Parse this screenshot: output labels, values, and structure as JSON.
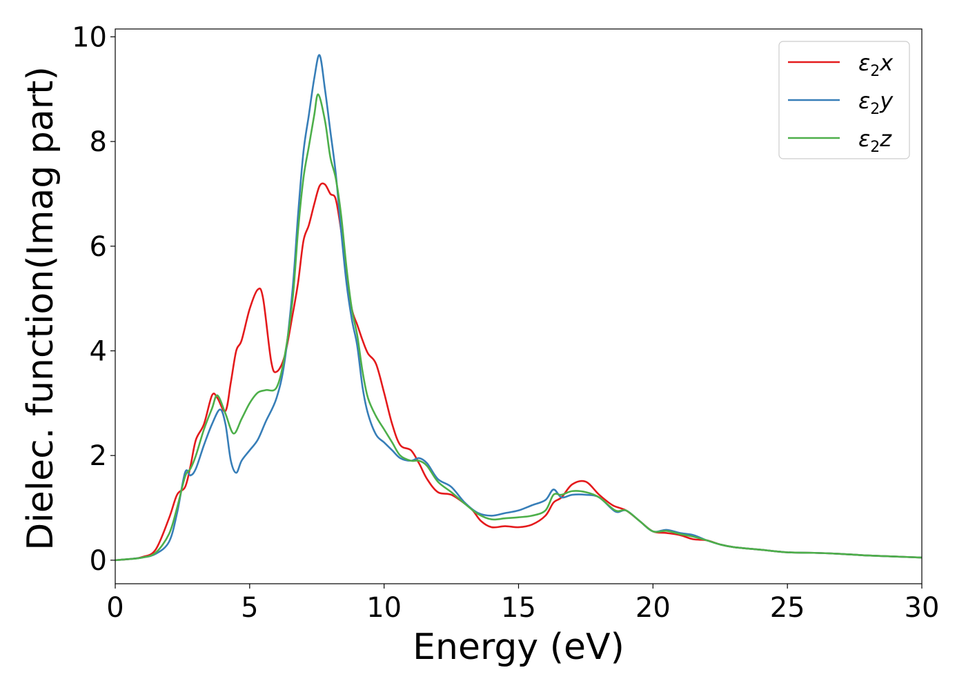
{
  "chart_data": {
    "type": "line",
    "xlabel": "Energy (eV)",
    "ylabel": "Dielec. function(Imag part)",
    "xlim": [
      0,
      30
    ],
    "ylim": [
      -0.45,
      10.15
    ],
    "xticks": [
      0,
      5,
      10,
      15,
      20,
      25,
      30
    ],
    "yticks": [
      0,
      2,
      4,
      6,
      8,
      10
    ],
    "grid": false,
    "legend_position": "top-right",
    "series": [
      {
        "name": "ε2x",
        "legend": {
          "base": "ε",
          "sub": "2",
          "suffix": "x"
        },
        "color": "#e41a1c",
        "points": [
          [
            0,
            0
          ],
          [
            0.5,
            0.02
          ],
          [
            1,
            0.06
          ],
          [
            1.5,
            0.2
          ],
          [
            2,
            0.8
          ],
          [
            2.3,
            1.25
          ],
          [
            2.6,
            1.4
          ],
          [
            2.8,
            1.8
          ],
          [
            3,
            2.3
          ],
          [
            3.3,
            2.6
          ],
          [
            3.6,
            3.15
          ],
          [
            3.8,
            3.1
          ],
          [
            4.1,
            2.85
          ],
          [
            4.3,
            3.4
          ],
          [
            4.5,
            4.0
          ],
          [
            4.7,
            4.2
          ],
          [
            5,
            4.8
          ],
          [
            5.3,
            5.17
          ],
          [
            5.5,
            5.0
          ],
          [
            5.8,
            3.8
          ],
          [
            6,
            3.6
          ],
          [
            6.3,
            3.9
          ],
          [
            6.6,
            4.7
          ],
          [
            6.8,
            5.3
          ],
          [
            7,
            6.1
          ],
          [
            7.2,
            6.4
          ],
          [
            7.4,
            6.8
          ],
          [
            7.6,
            7.15
          ],
          [
            7.8,
            7.18
          ],
          [
            8,
            7.0
          ],
          [
            8.2,
            6.9
          ],
          [
            8.4,
            6.3
          ],
          [
            8.6,
            5.5
          ],
          [
            8.8,
            4.8
          ],
          [
            9,
            4.5
          ],
          [
            9.2,
            4.2
          ],
          [
            9.4,
            3.95
          ],
          [
            9.7,
            3.75
          ],
          [
            10,
            3.2
          ],
          [
            10.3,
            2.6
          ],
          [
            10.6,
            2.2
          ],
          [
            11,
            2.1
          ],
          [
            11.3,
            1.85
          ],
          [
            11.6,
            1.55
          ],
          [
            12,
            1.3
          ],
          [
            12.5,
            1.25
          ],
          [
            13,
            1.08
          ],
          [
            13.3,
            0.95
          ],
          [
            13.6,
            0.75
          ],
          [
            14,
            0.63
          ],
          [
            14.5,
            0.65
          ],
          [
            15,
            0.63
          ],
          [
            15.5,
            0.68
          ],
          [
            16,
            0.85
          ],
          [
            16.3,
            1.1
          ],
          [
            16.6,
            1.2
          ],
          [
            17,
            1.45
          ],
          [
            17.5,
            1.5
          ],
          [
            18,
            1.25
          ],
          [
            18.5,
            1.05
          ],
          [
            19,
            0.95
          ],
          [
            19.5,
            0.75
          ],
          [
            20,
            0.55
          ],
          [
            20.5,
            0.52
          ],
          [
            21,
            0.48
          ],
          [
            21.5,
            0.4
          ],
          [
            22,
            0.38
          ],
          [
            22.5,
            0.3
          ],
          [
            23,
            0.25
          ],
          [
            24,
            0.2
          ],
          [
            25,
            0.15
          ],
          [
            26,
            0.14
          ],
          [
            27,
            0.12
          ],
          [
            28,
            0.09
          ],
          [
            29,
            0.07
          ],
          [
            30,
            0.05
          ]
        ]
      },
      {
        "name": "ε2y",
        "legend": {
          "base": "ε",
          "sub": "2",
          "suffix": "y"
        },
        "color": "#377eb8",
        "points": [
          [
            0,
            0
          ],
          [
            0.5,
            0.02
          ],
          [
            1,
            0.05
          ],
          [
            1.5,
            0.12
          ],
          [
            2,
            0.35
          ],
          [
            2.3,
            0.9
          ],
          [
            2.6,
            1.68
          ],
          [
            2.8,
            1.62
          ],
          [
            3,
            1.75
          ],
          [
            3.3,
            2.2
          ],
          [
            3.6,
            2.6
          ],
          [
            3.9,
            2.88
          ],
          [
            4.1,
            2.6
          ],
          [
            4.3,
            1.9
          ],
          [
            4.5,
            1.67
          ],
          [
            4.7,
            1.9
          ],
          [
            5,
            2.1
          ],
          [
            5.3,
            2.3
          ],
          [
            5.6,
            2.65
          ],
          [
            6,
            3.1
          ],
          [
            6.3,
            3.8
          ],
          [
            6.6,
            5.2
          ],
          [
            6.8,
            6.6
          ],
          [
            7,
            7.8
          ],
          [
            7.2,
            8.5
          ],
          [
            7.4,
            9.2
          ],
          [
            7.6,
            9.65
          ],
          [
            7.8,
            9.0
          ],
          [
            8,
            8.2
          ],
          [
            8.2,
            7.4
          ],
          [
            8.4,
            6.3
          ],
          [
            8.6,
            5.3
          ],
          [
            8.8,
            4.6
          ],
          [
            9,
            4.1
          ],
          [
            9.2,
            3.3
          ],
          [
            9.4,
            2.8
          ],
          [
            9.7,
            2.4
          ],
          [
            10,
            2.25
          ],
          [
            10.3,
            2.1
          ],
          [
            10.6,
            1.95
          ],
          [
            11,
            1.9
          ],
          [
            11.3,
            1.95
          ],
          [
            11.6,
            1.85
          ],
          [
            12,
            1.55
          ],
          [
            12.5,
            1.4
          ],
          [
            13,
            1.1
          ],
          [
            13.5,
            0.9
          ],
          [
            14,
            0.85
          ],
          [
            14.5,
            0.9
          ],
          [
            15,
            0.95
          ],
          [
            15.5,
            1.05
          ],
          [
            16,
            1.15
          ],
          [
            16.3,
            1.35
          ],
          [
            16.6,
            1.2
          ],
          [
            17,
            1.25
          ],
          [
            17.5,
            1.25
          ],
          [
            18,
            1.2
          ],
          [
            18.6,
            0.93
          ],
          [
            19,
            0.95
          ],
          [
            19.5,
            0.75
          ],
          [
            20,
            0.55
          ],
          [
            20.5,
            0.58
          ],
          [
            21,
            0.52
          ],
          [
            21.5,
            0.48
          ],
          [
            22,
            0.38
          ],
          [
            22.5,
            0.3
          ],
          [
            23,
            0.25
          ],
          [
            24,
            0.2
          ],
          [
            25,
            0.15
          ],
          [
            26,
            0.14
          ],
          [
            27,
            0.12
          ],
          [
            28,
            0.09
          ],
          [
            29,
            0.07
          ],
          [
            30,
            0.05
          ]
        ]
      },
      {
        "name": "ε2z",
        "legend": {
          "base": "ε",
          "sub": "2",
          "suffix": "z"
        },
        "color": "#4daf4a",
        "points": [
          [
            0,
            0
          ],
          [
            0.5,
            0.02
          ],
          [
            1,
            0.05
          ],
          [
            1.5,
            0.14
          ],
          [
            2,
            0.5
          ],
          [
            2.3,
            1.0
          ],
          [
            2.6,
            1.6
          ],
          [
            2.8,
            1.75
          ],
          [
            3,
            2.0
          ],
          [
            3.3,
            2.5
          ],
          [
            3.6,
            2.9
          ],
          [
            3.8,
            3.15
          ],
          [
            4.1,
            2.8
          ],
          [
            4.4,
            2.42
          ],
          [
            4.7,
            2.7
          ],
          [
            5,
            3.0
          ],
          [
            5.3,
            3.2
          ],
          [
            5.6,
            3.25
          ],
          [
            6,
            3.3
          ],
          [
            6.3,
            3.9
          ],
          [
            6.6,
            5.0
          ],
          [
            6.8,
            6.3
          ],
          [
            7,
            7.3
          ],
          [
            7.2,
            7.9
          ],
          [
            7.4,
            8.5
          ],
          [
            7.55,
            8.9
          ],
          [
            7.8,
            8.4
          ],
          [
            8,
            7.7
          ],
          [
            8.2,
            7.3
          ],
          [
            8.4,
            6.6
          ],
          [
            8.6,
            5.6
          ],
          [
            8.8,
            4.8
          ],
          [
            9,
            4.3
          ],
          [
            9.2,
            3.6
          ],
          [
            9.4,
            3.1
          ],
          [
            9.7,
            2.75
          ],
          [
            10,
            2.5
          ],
          [
            10.3,
            2.25
          ],
          [
            10.6,
            2.0
          ],
          [
            11,
            1.9
          ],
          [
            11.3,
            1.9
          ],
          [
            11.6,
            1.8
          ],
          [
            12,
            1.5
          ],
          [
            12.5,
            1.3
          ],
          [
            13,
            1.08
          ],
          [
            13.5,
            0.88
          ],
          [
            14,
            0.78
          ],
          [
            14.5,
            0.8
          ],
          [
            15,
            0.82
          ],
          [
            15.5,
            0.85
          ],
          [
            16,
            0.95
          ],
          [
            16.3,
            1.25
          ],
          [
            16.6,
            1.25
          ],
          [
            17,
            1.32
          ],
          [
            17.5,
            1.3
          ],
          [
            18,
            1.2
          ],
          [
            18.6,
            0.95
          ],
          [
            19,
            0.95
          ],
          [
            19.5,
            0.75
          ],
          [
            20,
            0.55
          ],
          [
            20.5,
            0.56
          ],
          [
            21,
            0.5
          ],
          [
            21.5,
            0.45
          ],
          [
            22,
            0.38
          ],
          [
            22.5,
            0.3
          ],
          [
            23,
            0.25
          ],
          [
            24,
            0.2
          ],
          [
            25,
            0.15
          ],
          [
            26,
            0.14
          ],
          [
            27,
            0.12
          ],
          [
            28,
            0.09
          ],
          [
            29,
            0.07
          ],
          [
            30,
            0.05
          ]
        ]
      }
    ]
  }
}
